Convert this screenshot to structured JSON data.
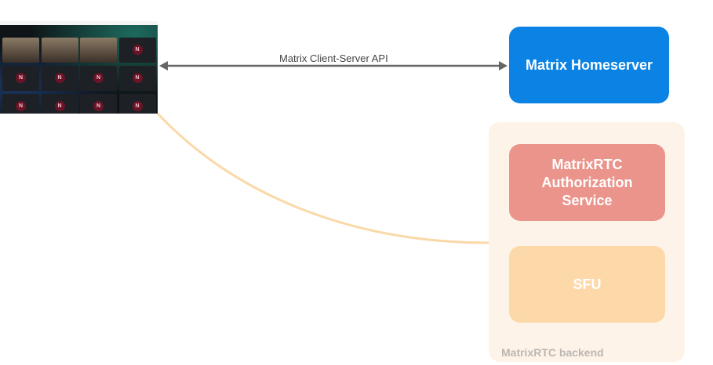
{
  "diagram": {
    "client": {
      "description_icon": "video-call-screenshot",
      "avatar_letter": "N"
    },
    "edge_api": {
      "label": "Matrix Client-Server API",
      "color": "#666666"
    },
    "homeserver": {
      "label": "Matrix Homeserver",
      "color": "#0a83e4"
    },
    "backend": {
      "label": "MatrixRTC backend",
      "color": "#fef3e8"
    },
    "auth": {
      "label": "MatrixRTC Authorization Service",
      "color": "#ea948b"
    },
    "sfu": {
      "label": "SFU",
      "color": "#fdd9a9"
    },
    "edge_media": {
      "color": "#fad9a8"
    }
  }
}
